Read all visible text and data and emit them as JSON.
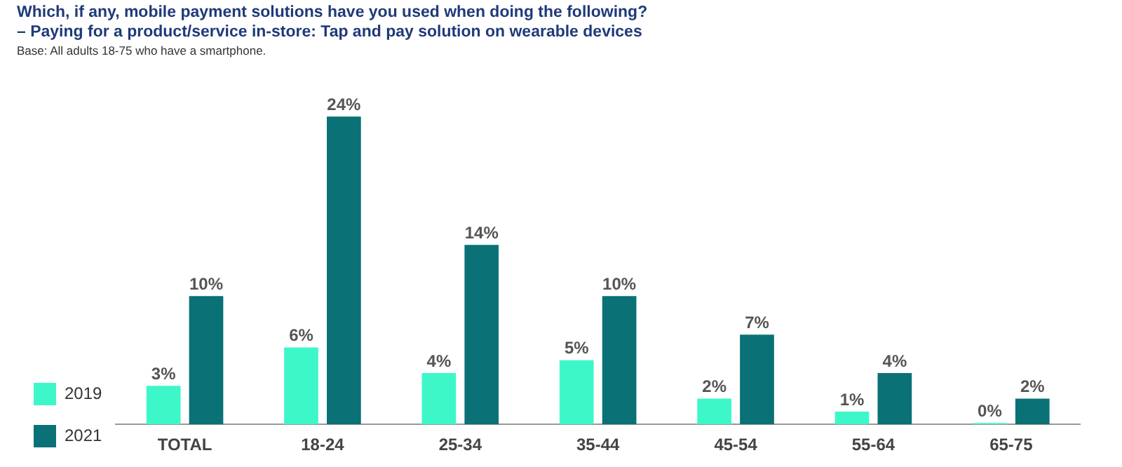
{
  "chart_data": {
    "type": "bar",
    "title": "Which, if any, mobile payment solutions have you used when doing the following?",
    "subtitle": "– Paying for a product/service in-store: Tap and pay solution on wearable devices",
    "annotations": [
      "Base: All adults 18-75 who have a smartphone."
    ],
    "categories": [
      "TOTAL",
      "18-24",
      "25-34",
      "35-44",
      "45-54",
      "55-64",
      "65-75"
    ],
    "series": [
      {
        "name": "2019",
        "color": "#3ef7c9",
        "values": [
          3,
          6,
          4,
          5,
          2,
          1,
          0
        ],
        "value_labels": [
          "3%",
          "6%",
          "4%",
          "5%",
          "2%",
          "1%",
          "0%"
        ]
      },
      {
        "name": "2021",
        "color": "#0a7176",
        "values": [
          10,
          24,
          14,
          10,
          7,
          4,
          2
        ],
        "value_labels": [
          "10%",
          "24%",
          "14%",
          "10%",
          "7%",
          "4%",
          "2%"
        ]
      }
    ],
    "legend": "bottom left",
    "grid": false
  }
}
